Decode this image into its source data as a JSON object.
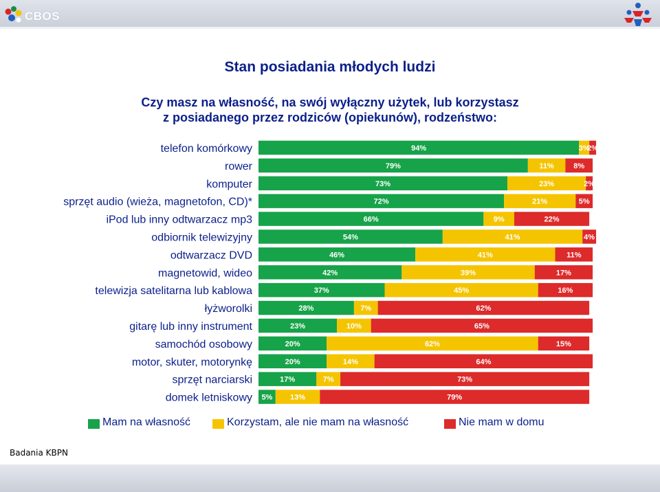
{
  "header": {
    "brand": "CBOS"
  },
  "title": "Stan posiadania młodych ludzi",
  "subtitle": [
    "Czy masz na własność, na swój wyłączny użytek, lub korzystasz",
    "z posiadanego przez rodziców (opiekunów), rodzeństwo:"
  ],
  "colors": {
    "own": "#17a349",
    "use": "#f5c400",
    "none": "#dd2a2a",
    "text": "#0b1f8a"
  },
  "footer": "Badania KBPN",
  "chart_data": {
    "type": "bar",
    "orientation": "horizontal",
    "stacked": true,
    "categories": [
      "telefon komórkowy",
      "rower ",
      "komputer",
      "sprzęt audio (wieża, magnetofon, CD)*",
      "iPod lub inny odtwarzacz mp3",
      "odbiornik telewizyjny",
      "odtwarzacz DVD",
      "magnetowid, wideo",
      "telewizja satelitarna lub kablowa",
      "łyżworolki",
      "gitarę lub inny instrument",
      "samochód osobowy",
      "motor, skuter, motorynkę",
      "sprzęt narciarski",
      "domek letniskowy"
    ],
    "series": [
      {
        "name": "Mam na własność",
        "values": [
          94,
          79,
          73,
          72,
          66,
          54,
          46,
          42,
          37,
          28,
          23,
          20,
          20,
          17,
          5
        ]
      },
      {
        "name": "Korzystam, ale nie mam na własność",
        "values": [
          3,
          11,
          23,
          21,
          9,
          41,
          41,
          39,
          45,
          7,
          10,
          62,
          14,
          7,
          13
        ]
      },
      {
        "name": "Nie mam w domu",
        "values": [
          2,
          8,
          2,
          5,
          22,
          4,
          11,
          17,
          16,
          62,
          65,
          15,
          64,
          73,
          79
        ]
      }
    ],
    "value_suffix": "%",
    "xlim": [
      0,
      100
    ],
    "legend": "bottom"
  }
}
